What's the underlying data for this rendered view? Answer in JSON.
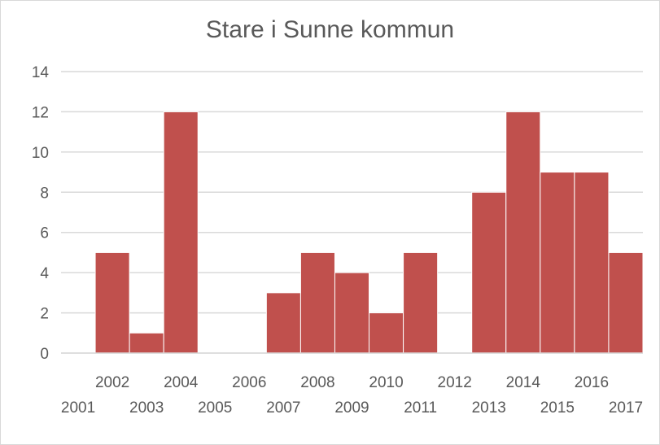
{
  "chart_data": {
    "type": "bar",
    "title": "Stare i Sunne kommun",
    "xlabel": "",
    "ylabel": "",
    "categories": [
      "2001",
      "2002",
      "2003",
      "2004",
      "2005",
      "2006",
      "2007",
      "2008",
      "2009",
      "2010",
      "2011",
      "2012",
      "2013",
      "2014",
      "2015",
      "2016",
      "2017"
    ],
    "values": [
      0,
      5,
      1,
      12,
      0,
      0,
      3,
      5,
      4,
      2,
      5,
      0,
      8,
      12,
      9,
      9,
      5
    ],
    "ylim": [
      0,
      14
    ],
    "yticks": [
      "0",
      "2",
      "4",
      "6",
      "8",
      "10",
      "12",
      "14"
    ],
    "grid": true,
    "legend": "none",
    "bar_color": "#c0504d",
    "gridline_color": "#d9d9d9",
    "text_color": "#595959"
  }
}
